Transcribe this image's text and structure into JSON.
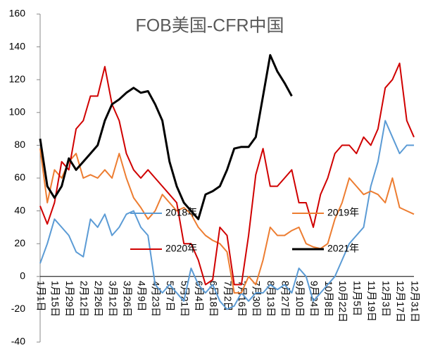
{
  "chart_data": {
    "type": "line",
    "title": "FOB美国-CFR中国",
    "categories": [
      "1月1日",
      null,
      "1月15日",
      null,
      "1月29日",
      null,
      "2月12日",
      null,
      "2月26日",
      null,
      "3月12日",
      null,
      "3月26日",
      null,
      "4月9日",
      null,
      "4月23日",
      null,
      "5月7日",
      null,
      "5月21日",
      null,
      "6月4日",
      null,
      "6月18日",
      null,
      "7月2日",
      null,
      "7月16日",
      null,
      "7月30日",
      null,
      "8月13日",
      null,
      "8月27日",
      null,
      "9月10日",
      null,
      "9月24日",
      null,
      "10月8日",
      null,
      "10月22日",
      null,
      "11月5日",
      null,
      "11月19日",
      null,
      "12月3日",
      null,
      "12月17日",
      null,
      "12月31日"
    ],
    "series": [
      {
        "name": "2018年",
        "color": "#5b9bd5",
        "values": [
          8,
          20,
          35,
          30,
          25,
          15,
          12,
          35,
          30,
          38,
          25,
          30,
          38,
          40,
          30,
          25,
          -5,
          -10,
          -5,
          -10,
          -15,
          5,
          -5,
          -10,
          -5,
          -15,
          -20,
          -18,
          -10,
          -15,
          -10,
          -10,
          -5,
          -8,
          -5,
          -10,
          5,
          0,
          -15,
          -10,
          -5,
          0,
          10,
          20,
          25,
          30,
          55,
          70,
          95,
          85,
          75,
          80,
          80
        ]
      },
      {
        "name": "2019年",
        "color": "#ed7d31",
        "values": [
          78,
          45,
          65,
          60,
          70,
          75,
          60,
          62,
          60,
          65,
          60,
          75,
          60,
          48,
          42,
          35,
          40,
          50,
          45,
          40,
          42,
          38,
          30,
          25,
          22,
          20,
          15,
          -10,
          -10,
          0,
          -5,
          10,
          30,
          25,
          25,
          28,
          30,
          20,
          18,
          17,
          20,
          35,
          45,
          60,
          55,
          50,
          52,
          50,
          45,
          60,
          42,
          40,
          38
        ]
      },
      {
        "name": "2020年",
        "color": "#d00000",
        "values": [
          43,
          32,
          45,
          70,
          65,
          90,
          95,
          110,
          110,
          128,
          105,
          95,
          75,
          65,
          60,
          65,
          60,
          55,
          50,
          45,
          20,
          20,
          10,
          -5,
          -2,
          30,
          25,
          -5,
          -5,
          25,
          62,
          78,
          55,
          55,
          60,
          65,
          45,
          45,
          30,
          50,
          60,
          75,
          80,
          80,
          75,
          85,
          80,
          90,
          115,
          120,
          130,
          95,
          85
        ]
      },
      {
        "name": "2021年",
        "color": "#000000",
        "values": [
          84,
          55,
          48,
          55,
          72,
          65,
          70,
          75,
          80,
          95,
          105,
          108,
          112,
          115,
          112,
          113,
          105,
          95,
          70,
          55,
          45,
          40,
          35,
          50,
          52,
          55,
          65,
          78,
          79,
          79,
          85,
          110,
          135,
          125,
          118,
          110,
          null,
          null,
          null,
          null,
          null,
          null,
          null,
          null,
          null,
          null,
          null,
          null,
          null,
          null,
          null,
          null,
          null
        ]
      }
    ],
    "ylim": [
      -40,
      160
    ],
    "yticks": [
      -40,
      -20,
      0,
      20,
      40,
      60,
      80,
      100,
      120,
      140,
      160
    ]
  }
}
